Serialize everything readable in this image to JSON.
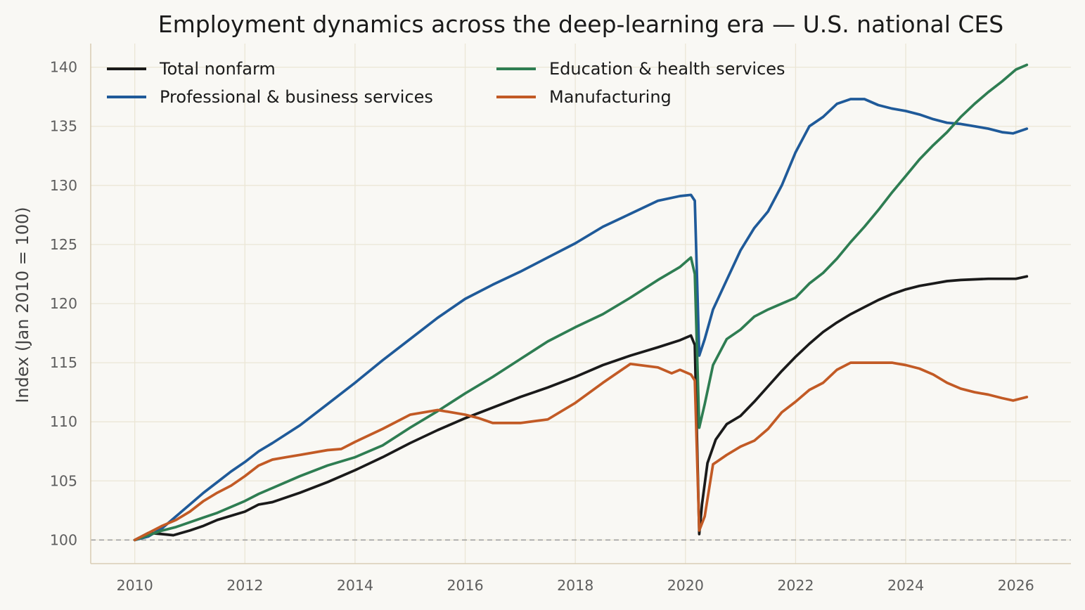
{
  "chart_data": {
    "type": "line",
    "title": "Employment dynamics across the deep-learning era — U.S. national CES",
    "xlabel": "",
    "ylabel": "Index (Jan 2010 = 100)",
    "xlim": [
      2009.2,
      2027.0
    ],
    "ylim": [
      98,
      142
    ],
    "xticks": [
      2010,
      2012,
      2014,
      2016,
      2018,
      2020,
      2022,
      2024,
      2026
    ],
    "yticks": [
      100,
      105,
      110,
      115,
      120,
      125,
      130,
      135,
      140
    ],
    "reference_line": 100,
    "grid": true,
    "legend": "top-left, 2 columns",
    "series": [
      {
        "name": "Total nonfarm",
        "color": "#1a1a1a",
        "points": [
          [
            2010.0,
            100.0
          ],
          [
            2010.25,
            100.6
          ],
          [
            2010.5,
            100.5
          ],
          [
            2010.7,
            100.4
          ],
          [
            2011.0,
            100.8
          ],
          [
            2011.25,
            101.2
          ],
          [
            2011.5,
            101.7
          ],
          [
            2012.0,
            102.4
          ],
          [
            2012.25,
            103.0
          ],
          [
            2012.5,
            103.2
          ],
          [
            2013.0,
            104.0
          ],
          [
            2013.5,
            104.9
          ],
          [
            2014.0,
            105.9
          ],
          [
            2014.5,
            107.0
          ],
          [
            2015.0,
            108.2
          ],
          [
            2015.5,
            109.3
          ],
          [
            2016.0,
            110.3
          ],
          [
            2016.5,
            111.2
          ],
          [
            2017.0,
            112.1
          ],
          [
            2017.5,
            112.9
          ],
          [
            2018.0,
            113.8
          ],
          [
            2018.5,
            114.8
          ],
          [
            2019.0,
            115.6
          ],
          [
            2019.5,
            116.3
          ],
          [
            2019.9,
            116.9
          ],
          [
            2020.1,
            117.3
          ],
          [
            2020.17,
            116.5
          ],
          [
            2020.25,
            100.5
          ],
          [
            2020.3,
            103.0
          ],
          [
            2020.4,
            106.5
          ],
          [
            2020.55,
            108.5
          ],
          [
            2020.75,
            109.8
          ],
          [
            2021.0,
            110.5
          ],
          [
            2021.25,
            111.7
          ],
          [
            2021.5,
            113.0
          ],
          [
            2021.75,
            114.3
          ],
          [
            2022.0,
            115.5
          ],
          [
            2022.25,
            116.6
          ],
          [
            2022.5,
            117.6
          ],
          [
            2022.75,
            118.4
          ],
          [
            2023.0,
            119.1
          ],
          [
            2023.25,
            119.7
          ],
          [
            2023.5,
            120.3
          ],
          [
            2023.75,
            120.8
          ],
          [
            2024.0,
            121.2
          ],
          [
            2024.25,
            121.5
          ],
          [
            2024.5,
            121.7
          ],
          [
            2024.75,
            121.9
          ],
          [
            2025.0,
            122.0
          ],
          [
            2025.5,
            122.1
          ],
          [
            2026.0,
            122.1
          ],
          [
            2026.2,
            122.3
          ]
        ]
      },
      {
        "name": "Professional & business services",
        "color": "#1f5a99",
        "points": [
          [
            2010.0,
            100.0
          ],
          [
            2010.25,
            100.3
          ],
          [
            2010.5,
            101.0
          ],
          [
            2010.75,
            102.0
          ],
          [
            2011.0,
            103.0
          ],
          [
            2011.25,
            104.0
          ],
          [
            2011.5,
            104.9
          ],
          [
            2011.75,
            105.8
          ],
          [
            2012.0,
            106.6
          ],
          [
            2012.25,
            107.5
          ],
          [
            2012.5,
            108.2
          ],
          [
            2013.0,
            109.7
          ],
          [
            2013.5,
            111.5
          ],
          [
            2014.0,
            113.3
          ],
          [
            2014.5,
            115.2
          ],
          [
            2015.0,
            117.0
          ],
          [
            2015.5,
            118.8
          ],
          [
            2016.0,
            120.4
          ],
          [
            2016.5,
            121.6
          ],
          [
            2017.0,
            122.7
          ],
          [
            2017.5,
            123.9
          ],
          [
            2018.0,
            125.1
          ],
          [
            2018.5,
            126.5
          ],
          [
            2019.0,
            127.6
          ],
          [
            2019.5,
            128.7
          ],
          [
            2019.9,
            129.1
          ],
          [
            2020.1,
            129.2
          ],
          [
            2020.17,
            128.7
          ],
          [
            2020.25,
            115.6
          ],
          [
            2020.35,
            117.0
          ],
          [
            2020.5,
            119.5
          ],
          [
            2020.75,
            122.0
          ],
          [
            2021.0,
            124.5
          ],
          [
            2021.25,
            126.4
          ],
          [
            2021.5,
            127.8
          ],
          [
            2021.75,
            130.0
          ],
          [
            2022.0,
            132.8
          ],
          [
            2022.25,
            135.0
          ],
          [
            2022.5,
            135.8
          ],
          [
            2022.75,
            136.9
          ],
          [
            2023.0,
            137.3
          ],
          [
            2023.25,
            137.3
          ],
          [
            2023.5,
            136.8
          ],
          [
            2023.75,
            136.5
          ],
          [
            2024.0,
            136.3
          ],
          [
            2024.25,
            136.0
          ],
          [
            2024.5,
            135.6
          ],
          [
            2024.75,
            135.3
          ],
          [
            2025.0,
            135.2
          ],
          [
            2025.25,
            135.0
          ],
          [
            2025.5,
            134.8
          ],
          [
            2025.75,
            134.5
          ],
          [
            2025.95,
            134.4
          ],
          [
            2026.2,
            134.8
          ]
        ]
      },
      {
        "name": "Education & health services",
        "color": "#2e7d52",
        "points": [
          [
            2010.0,
            100.0
          ],
          [
            2010.25,
            100.4
          ],
          [
            2010.5,
            100.8
          ],
          [
            2010.75,
            101.1
          ],
          [
            2011.0,
            101.5
          ],
          [
            2011.25,
            101.9
          ],
          [
            2011.5,
            102.3
          ],
          [
            2011.75,
            102.8
          ],
          [
            2012.0,
            103.3
          ],
          [
            2012.25,
            103.9
          ],
          [
            2012.5,
            104.4
          ],
          [
            2013.0,
            105.4
          ],
          [
            2013.5,
            106.3
          ],
          [
            2014.0,
            107.0
          ],
          [
            2014.5,
            108.0
          ],
          [
            2015.0,
            109.5
          ],
          [
            2015.5,
            110.9
          ],
          [
            2016.0,
            112.4
          ],
          [
            2016.5,
            113.8
          ],
          [
            2017.0,
            115.3
          ],
          [
            2017.5,
            116.8
          ],
          [
            2018.0,
            118.0
          ],
          [
            2018.5,
            119.1
          ],
          [
            2019.0,
            120.5
          ],
          [
            2019.5,
            122.0
          ],
          [
            2019.9,
            123.1
          ],
          [
            2020.1,
            123.9
          ],
          [
            2020.17,
            122.5
          ],
          [
            2020.25,
            109.5
          ],
          [
            2020.35,
            111.5
          ],
          [
            2020.5,
            114.8
          ],
          [
            2020.75,
            117.0
          ],
          [
            2021.0,
            117.8
          ],
          [
            2021.25,
            118.9
          ],
          [
            2021.5,
            119.5
          ],
          [
            2021.75,
            120.0
          ],
          [
            2022.0,
            120.5
          ],
          [
            2022.25,
            121.7
          ],
          [
            2022.5,
            122.6
          ],
          [
            2022.75,
            123.8
          ],
          [
            2023.0,
            125.2
          ],
          [
            2023.25,
            126.5
          ],
          [
            2023.5,
            127.9
          ],
          [
            2023.75,
            129.4
          ],
          [
            2024.0,
            130.8
          ],
          [
            2024.25,
            132.2
          ],
          [
            2024.5,
            133.4
          ],
          [
            2024.75,
            134.5
          ],
          [
            2025.0,
            135.8
          ],
          [
            2025.25,
            136.9
          ],
          [
            2025.5,
            137.9
          ],
          [
            2025.75,
            138.8
          ],
          [
            2026.0,
            139.8
          ],
          [
            2026.2,
            140.2
          ]
        ]
      },
      {
        "name": "Manufacturing",
        "color": "#c25a25",
        "points": [
          [
            2010.0,
            100.0
          ],
          [
            2010.25,
            100.6
          ],
          [
            2010.5,
            101.2
          ],
          [
            2010.75,
            101.7
          ],
          [
            2011.0,
            102.4
          ],
          [
            2011.25,
            103.3
          ],
          [
            2011.5,
            104.0
          ],
          [
            2011.75,
            104.6
          ],
          [
            2012.0,
            105.4
          ],
          [
            2012.25,
            106.3
          ],
          [
            2012.5,
            106.8
          ],
          [
            2012.75,
            107.0
          ],
          [
            2013.0,
            107.2
          ],
          [
            2013.5,
            107.6
          ],
          [
            2013.75,
            107.7
          ],
          [
            2014.0,
            108.3
          ],
          [
            2014.5,
            109.4
          ],
          [
            2015.0,
            110.6
          ],
          [
            2015.5,
            111.0
          ],
          [
            2016.0,
            110.6
          ],
          [
            2016.25,
            110.3
          ],
          [
            2016.5,
            109.9
          ],
          [
            2017.0,
            109.9
          ],
          [
            2017.5,
            110.2
          ],
          [
            2018.0,
            111.6
          ],
          [
            2018.5,
            113.3
          ],
          [
            2019.0,
            114.9
          ],
          [
            2019.5,
            114.6
          ],
          [
            2019.75,
            114.1
          ],
          [
            2019.9,
            114.4
          ],
          [
            2020.1,
            114.0
          ],
          [
            2020.17,
            113.5
          ],
          [
            2020.25,
            100.8
          ],
          [
            2020.35,
            102.0
          ],
          [
            2020.5,
            106.4
          ],
          [
            2020.75,
            107.2
          ],
          [
            2021.0,
            107.9
          ],
          [
            2021.25,
            108.4
          ],
          [
            2021.5,
            109.4
          ],
          [
            2021.75,
            110.8
          ],
          [
            2022.0,
            111.7
          ],
          [
            2022.25,
            112.7
          ],
          [
            2022.5,
            113.3
          ],
          [
            2022.75,
            114.4
          ],
          [
            2023.0,
            115.0
          ],
          [
            2023.25,
            115.0
          ],
          [
            2023.5,
            115.0
          ],
          [
            2023.75,
            115.0
          ],
          [
            2024.0,
            114.8
          ],
          [
            2024.25,
            114.5
          ],
          [
            2024.5,
            114.0
          ],
          [
            2024.75,
            113.3
          ],
          [
            2025.0,
            112.8
          ],
          [
            2025.25,
            112.5
          ],
          [
            2025.5,
            112.3
          ],
          [
            2025.75,
            112.0
          ],
          [
            2025.95,
            111.8
          ],
          [
            2026.2,
            112.1
          ]
        ]
      }
    ]
  }
}
